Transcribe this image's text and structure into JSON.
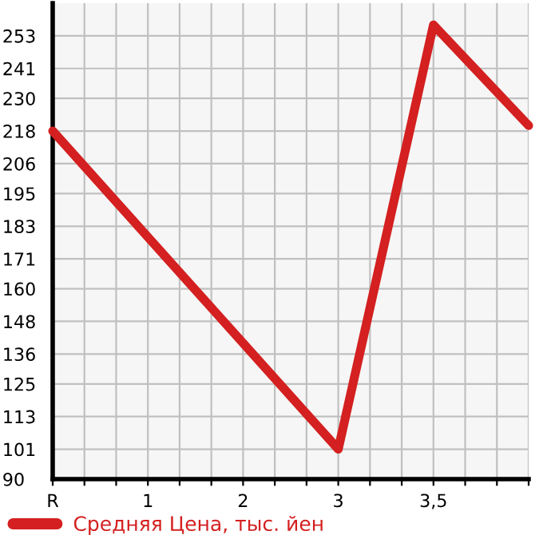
{
  "chart_data": {
    "type": "line",
    "categories": [
      "R",
      null,
      null,
      "1",
      null,
      null,
      "2",
      null,
      null,
      "3",
      null,
      null,
      "3,5",
      null,
      null,
      null
    ],
    "series": [
      {
        "name": "Средняя Цена, тыс. йен",
        "color": "#d42020",
        "values": [
          218,
          null,
          null,
          null,
          null,
          null,
          null,
          null,
          null,
          101,
          null,
          null,
          257,
          null,
          null,
          220
        ]
      }
    ],
    "ylim": [
      90,
      265
    ],
    "yticks": [
      90,
      101,
      113,
      125,
      136,
      148,
      160,
      171,
      183,
      195,
      206,
      218,
      230,
      241,
      253
    ],
    "grid": true,
    "legend": "bottom",
    "marker": "none",
    "line_style": "solid"
  }
}
